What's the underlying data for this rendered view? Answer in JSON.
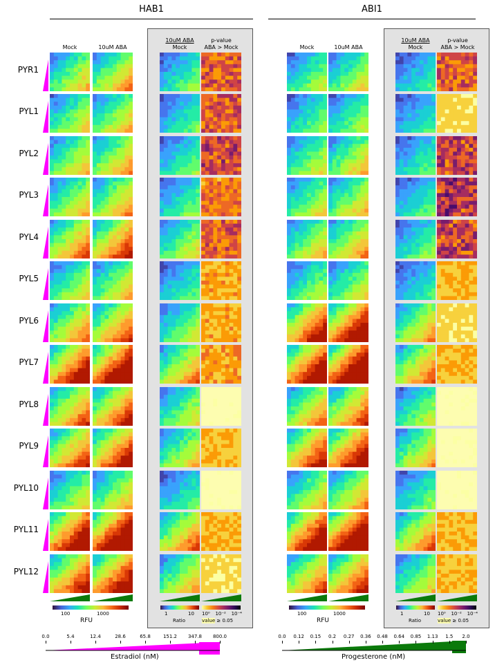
{
  "groups": [
    {
      "title": "HAB1"
    },
    {
      "title": "ABI1"
    }
  ],
  "column_headers": {
    "mock": "Mock",
    "aba": "10uM ABA",
    "ratio_top": "10uM ABA",
    "ratio_bottom": "Mock",
    "pvalue_top": "p-value",
    "pvalue_bottom": "ABA > Mock"
  },
  "rows": [
    "PYR1",
    "PYL1",
    "PYL2",
    "PYL3",
    "PYL4",
    "PYL5",
    "PYL6",
    "PYL7",
    "PYL8",
    "PYL9",
    "PYL10",
    "PYL11",
    "PYL12"
  ],
  "scales": {
    "rfu": {
      "ticks": [
        "100",
        "1000"
      ],
      "label": "RFU"
    },
    "ratio": {
      "ticks": [
        "1",
        "10"
      ],
      "label": "Ratio"
    },
    "pvalue": {
      "ticks": [
        "10⁰",
        "10⁻²",
        "10⁻⁴"
      ],
      "label_value": "value",
      "label_rest": "≥ 0.05"
    },
    "pvalue_abi": {
      "ticks": [
        "10⁰",
        "10⁻²",
        "10⁻⁴"
      ],
      "label_value": "value",
      "label_rest": "≥ 0.05"
    }
  },
  "estradiol": {
    "ticks": [
      "0.0",
      "5.4",
      "12.4",
      "28.6",
      "65.8",
      "151.2",
      "347.8",
      "800.0"
    ],
    "label": "Estradiol (nM)",
    "color": "#ff00ff"
  },
  "progesterone": {
    "ticks": [
      "0.0",
      "0.12",
      "0.15",
      "0.2",
      "0.27",
      "0.36",
      "0.48",
      "0.64",
      "0.85",
      "1.13",
      "1.5",
      "2.0"
    ],
    "label": "Progesterone (nM)",
    "color": "#0b7a0b"
  },
  "colors": {
    "panel_bg": "#e2e2e2",
    "highlight": "#fdfdb0"
  }
}
